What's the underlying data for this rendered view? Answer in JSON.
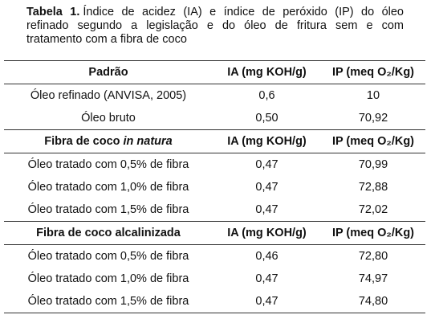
{
  "caption": {
    "label": "Tabela 1.",
    "lines": [
      "Índice de acidez (IA) e índice de peróxido (IP) do óleo",
      "refinado segundo a legislação e do óleo de fritura sem e com",
      "tratamento com a fibra de coco"
    ]
  },
  "table": {
    "sections": [
      {
        "header": [
          [
            "Padrão"
          ],
          [
            "IA (mg KOH/g)"
          ],
          [
            "IP (meq O₂/Kg)"
          ]
        ],
        "rows": [
          [
            "Óleo refinado (ANVISA, 2005)",
            "0,6",
            "10"
          ],
          [
            "Óleo bruto",
            "0,50",
            "70,92"
          ]
        ]
      },
      {
        "header": [
          [
            "Fibra de coco",
            "in natura"
          ],
          [
            "IA (mg KOH/g)"
          ],
          [
            "IP (meq O₂/Kg)"
          ]
        ],
        "rows": [
          [
            "Óleo tratado com 0,5% de fibra",
            "0,47",
            "70,99"
          ],
          [
            "Óleo tratado com 1,0% de fibra",
            "0,47",
            "72,88"
          ],
          [
            "Óleo tratado com 1,5% de fibra",
            "0,47",
            "72,02"
          ]
        ]
      },
      {
        "header": [
          [
            "Fibra de coco alcalinizada"
          ],
          [
            "IA (mg KOH/g)"
          ],
          [
            "IP (meq O₂/Kg)"
          ]
        ],
        "rows": [
          [
            "Óleo tratado com 0,5% de fibra",
            "0,46",
            "72,80"
          ],
          [
            "Óleo tratado com 1,0% de fibra",
            "0,47",
            "74,97"
          ],
          [
            "Óleo tratado com 1,5% de fibra",
            "0,47",
            "74,80"
          ]
        ]
      }
    ]
  }
}
